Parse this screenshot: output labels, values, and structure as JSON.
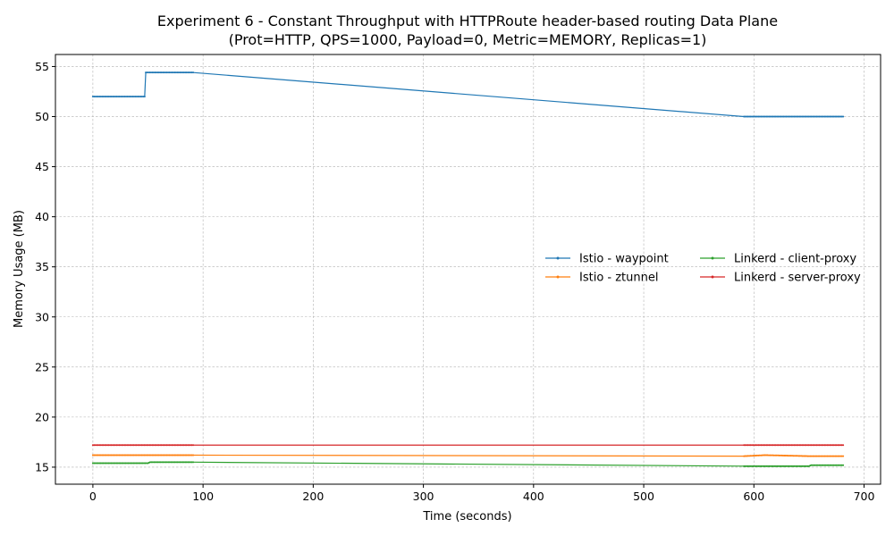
{
  "chart_data": {
    "type": "line",
    "title": "Experiment 6 - Constant Throughput with HTTPRoute header-based routing Data Plane",
    "subtitle": "(Prot=HTTP, QPS=1000, Payload=0, Metric=MEMORY, Replicas=1)",
    "xlabel": "Time (seconds)",
    "ylabel": "Memory Usage (MB)",
    "xlim": [
      -34,
      715
    ],
    "ylim": [
      13.3,
      56.2
    ],
    "xticks": [
      0,
      100,
      200,
      300,
      400,
      500,
      600,
      700
    ],
    "yticks": [
      15,
      20,
      25,
      30,
      35,
      40,
      45,
      50,
      55
    ],
    "grid": true,
    "legend": {
      "position": "center-right",
      "columns": 2
    },
    "series": [
      {
        "name": "Istio - waypoint",
        "color": "#1f77b4",
        "points": [
          [
            0,
            52.0
          ],
          [
            47,
            52.0
          ],
          [
            48,
            54.4
          ],
          [
            91,
            54.4
          ],
          [
            591,
            50.0
          ],
          [
            681,
            50.0
          ]
        ]
      },
      {
        "name": "Istio - ztunnel",
        "color": "#ff7f0e",
        "points": [
          [
            0,
            16.2
          ],
          [
            91,
            16.2
          ],
          [
            591,
            16.1
          ],
          [
            610,
            16.2
          ],
          [
            630,
            16.15
          ],
          [
            650,
            16.1
          ],
          [
            681,
            16.1
          ]
        ]
      },
      {
        "name": "Linkerd - client-proxy",
        "color": "#2ca02c",
        "points": [
          [
            0,
            15.4
          ],
          [
            50,
            15.4
          ],
          [
            52,
            15.5
          ],
          [
            91,
            15.5
          ],
          [
            591,
            15.1
          ],
          [
            650,
            15.1
          ],
          [
            652,
            15.2
          ],
          [
            681,
            15.2
          ]
        ]
      },
      {
        "name": "Linkerd - server-proxy",
        "color": "#d62728",
        "points": [
          [
            0,
            17.2
          ],
          [
            91,
            17.2
          ],
          [
            591,
            17.2
          ],
          [
            681,
            17.2
          ]
        ]
      }
    ]
  }
}
